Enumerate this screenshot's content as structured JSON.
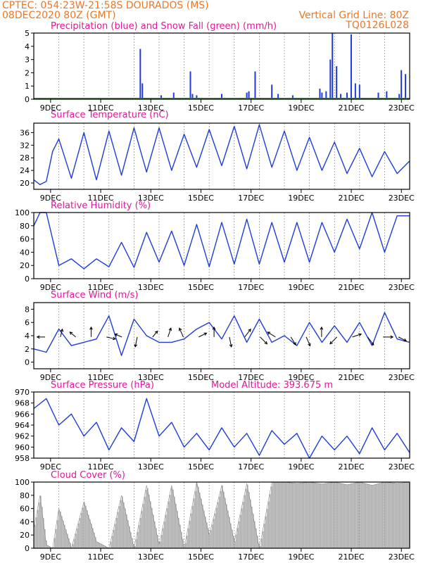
{
  "header": {
    "line1": "CPTEC:   054:23W-21:58S   DOURADOS (MS)",
    "line2": "08DEC2020 80Z (GMT)",
    "grid_note": "Vertical Grid Line: 80Z",
    "code": "TQ0126L028"
  },
  "colors": {
    "header": "#e8782a",
    "title": "#e2179b",
    "line": "#1f3bdc",
    "snow": "#1a9a1a",
    "cloud": "#a8a8a8"
  },
  "time_axis": {
    "start": "08DEC 08Z",
    "end": "23DEC 08Z",
    "ticks": [
      "9DEC",
      "11DEC",
      "13DEC",
      "15DEC",
      "17DEC",
      "19DEC",
      "21DEC",
      "23DEC"
    ],
    "tick_days_from_start": [
      0.67,
      2.67,
      4.67,
      6.67,
      8.67,
      10.67,
      12.67,
      14.67
    ]
  },
  "chart_data": [
    {
      "type": "bar",
      "title": "Precipitation (blue) and Snow Fall (green) (mm/h)",
      "ylim": [
        0,
        5
      ],
      "yticks": [
        "0",
        "1",
        "2",
        "3",
        "4",
        "5"
      ],
      "x": [
        "12DEC 14Z",
        "12DEC 16Z",
        "13DEC 10Z",
        "13DEC 22Z",
        "14DEC 14Z",
        "14DEC 16Z",
        "14DEC 20Z",
        "15DEC 20Z",
        "16DEC 20Z",
        "16DEC 22Z",
        "17DEC 04Z",
        "17DEC 20Z",
        "18DEC 02Z",
        "18DEC 16Z",
        "19DEC 18Z",
        "19DEC 20Z",
        "20DEC 00Z",
        "20DEC 04Z",
        "20DEC 06Z",
        "20DEC 10Z",
        "20DEC 14Z",
        "20DEC 20Z",
        "21DEC 00Z",
        "21DEC 04Z",
        "21DEC 08Z",
        "22DEC 02Z",
        "22DEC 10Z",
        "22DEC 22Z",
        "23DEC 00Z",
        "23DEC 04Z"
      ],
      "series": [
        {
          "name": "Precipitation",
          "values": [
            3.8,
            1.2,
            0.3,
            0.5,
            2.1,
            0.4,
            0.3,
            0.4,
            0.5,
            0.6,
            2.1,
            1.1,
            0.4,
            0.3,
            0.8,
            0.5,
            0.6,
            3.0,
            5.0,
            2.5,
            0.4,
            0.5,
            4.9,
            1.2,
            1.1,
            0.5,
            0.6,
            0.4,
            2.2,
            1.9
          ]
        },
        {
          "name": "Snow Fall",
          "values": [
            0,
            0,
            0,
            0,
            0,
            0,
            0,
            0,
            0,
            0,
            0,
            0,
            0,
            0,
            0,
            0,
            0,
            0,
            0,
            0,
            0,
            0,
            0,
            0,
            0,
            0,
            0,
            0,
            0,
            0
          ]
        }
      ]
    },
    {
      "type": "line",
      "title": "Surface Temperature (nC)",
      "ylim": [
        18,
        39
      ],
      "yticks": [
        "20",
        "24",
        "28",
        "32",
        "36"
      ],
      "x": [
        "08DEC 08Z",
        "08DEC 14Z",
        "08DEC 20Z",
        "09DEC 02Z",
        "09DEC 08Z",
        "09DEC 20Z",
        "10DEC 08Z",
        "10DEC 20Z",
        "11DEC 08Z",
        "11DEC 20Z",
        "12DEC 08Z",
        "12DEC 20Z",
        "13DEC 08Z",
        "13DEC 20Z",
        "14DEC 08Z",
        "14DEC 20Z",
        "15DEC 08Z",
        "15DEC 20Z",
        "16DEC 08Z",
        "16DEC 20Z",
        "17DEC 08Z",
        "17DEC 20Z",
        "18DEC 08Z",
        "18DEC 20Z",
        "19DEC 08Z",
        "19DEC 20Z",
        "20DEC 08Z",
        "20DEC 20Z",
        "21DEC 08Z",
        "21DEC 20Z",
        "22DEC 08Z",
        "22DEC 20Z",
        "23DEC 08Z"
      ],
      "values": [
        21,
        19.5,
        20.5,
        30,
        34,
        21.5,
        36,
        21,
        36.5,
        22.5,
        37.5,
        23.5,
        37.5,
        24,
        35.5,
        25,
        37,
        25.5,
        38,
        24.5,
        38.5,
        25,
        36.5,
        24,
        34.5,
        24,
        33,
        23,
        31,
        22,
        30,
        23,
        27
      ]
    },
    {
      "type": "line",
      "title": "Relative Humidity (%)",
      "ylim": [
        0,
        100
      ],
      "yticks": [
        "0",
        "20",
        "40",
        "60",
        "80",
        "100"
      ],
      "x": [
        "08DEC 08Z",
        "08DEC 14Z",
        "08DEC 20Z",
        "09DEC 08Z",
        "09DEC 20Z",
        "10DEC 08Z",
        "10DEC 20Z",
        "11DEC 08Z",
        "11DEC 20Z",
        "12DEC 08Z",
        "12DEC 20Z",
        "13DEC 08Z",
        "13DEC 20Z",
        "14DEC 08Z",
        "14DEC 20Z",
        "15DEC 08Z",
        "15DEC 20Z",
        "16DEC 08Z",
        "16DEC 20Z",
        "17DEC 08Z",
        "17DEC 20Z",
        "18DEC 08Z",
        "18DEC 20Z",
        "19DEC 08Z",
        "19DEC 20Z",
        "20DEC 08Z",
        "20DEC 20Z",
        "21DEC 08Z",
        "21DEC 20Z",
        "22DEC 08Z",
        "22DEC 20Z",
        "23DEC 08Z"
      ],
      "values": [
        80,
        100,
        100,
        20,
        30,
        15,
        30,
        18,
        55,
        17,
        70,
        25,
        72,
        20,
        82,
        18,
        85,
        22,
        90,
        22,
        85,
        25,
        85,
        25,
        85,
        40,
        90,
        45,
        100,
        40,
        95,
        95
      ]
    },
    {
      "type": "line",
      "title": "Surface Wind (m/s)",
      "ylim": [
        -1,
        9
      ],
      "yticks": [
        "0",
        "2",
        "4",
        "6",
        "8"
      ],
      "x": [
        "08DEC 08Z",
        "08DEC 20Z",
        "09DEC 08Z",
        "09DEC 20Z",
        "10DEC 08Z",
        "10DEC 20Z",
        "11DEC 08Z",
        "11DEC 20Z",
        "12DEC 08Z",
        "12DEC 20Z",
        "13DEC 08Z",
        "13DEC 20Z",
        "14DEC 08Z",
        "14DEC 20Z",
        "15DEC 08Z",
        "15DEC 20Z",
        "16DEC 08Z",
        "16DEC 20Z",
        "17DEC 08Z",
        "17DEC 20Z",
        "18DEC 08Z",
        "18DEC 20Z",
        "19DEC 08Z",
        "19DEC 20Z",
        "20DEC 08Z",
        "20DEC 20Z",
        "21DEC 08Z",
        "21DEC 20Z",
        "22DEC 08Z",
        "22DEC 20Z",
        "23DEC 08Z"
      ],
      "values": [
        2,
        1.5,
        5,
        2.5,
        3,
        3.5,
        7,
        1,
        6.5,
        4,
        3,
        3,
        3.5,
        5,
        6,
        3.5,
        7,
        3,
        6.5,
        3,
        4,
        2.5,
        6,
        3,
        5.5,
        3,
        6,
        2.5,
        7.5,
        3.5,
        3
      ],
      "wind_vectors": [
        {
          "u": -0.8,
          "v": 0
        },
        {
          "u": 0.2,
          "v": 0.8
        },
        {
          "u": -0.6,
          "v": 0.5
        },
        {
          "u": 0,
          "v": 1
        },
        {
          "u": 0.9,
          "v": -0.2
        },
        {
          "u": -0.7,
          "v": 0.3
        },
        {
          "u": -0.2,
          "v": -1
        },
        {
          "u": 0.5,
          "v": 0.6
        },
        {
          "u": 0.3,
          "v": 0.9
        },
        {
          "u": -0.4,
          "v": 0.9
        },
        {
          "u": 0.8,
          "v": 0.4
        },
        {
          "u": 0,
          "v": 1
        },
        {
          "u": 0.2,
          "v": -1
        },
        {
          "u": 0.6,
          "v": 0.8
        },
        {
          "u": 0.7,
          "v": -0.7
        },
        {
          "u": -0.8,
          "v": 0.5
        },
        {
          "u": 0.5,
          "v": -0.8
        },
        {
          "u": 0.4,
          "v": -0.9
        },
        {
          "u": 0,
          "v": 1
        },
        {
          "u": -0.7,
          "v": -0.7
        },
        {
          "u": 0.9,
          "v": 0.3
        },
        {
          "u": 0.6,
          "v": -0.8
        },
        {
          "u": 1,
          "v": 0
        },
        {
          "u": 0.8,
          "v": -0.4
        }
      ]
    },
    {
      "type": "line",
      "title": "Surface Pressure (hPa)",
      "annotation": "Model Altitude: 393.675 m",
      "ylim": [
        958,
        970
      ],
      "yticks": [
        "958",
        "960",
        "962",
        "964",
        "966",
        "968",
        "970"
      ],
      "x": [
        "08DEC 08Z",
        "08DEC 20Z",
        "09DEC 08Z",
        "09DEC 20Z",
        "10DEC 08Z",
        "10DEC 20Z",
        "11DEC 08Z",
        "11DEC 20Z",
        "12DEC 08Z",
        "12DEC 20Z",
        "13DEC 08Z",
        "13DEC 20Z",
        "14DEC 08Z",
        "14DEC 20Z",
        "15DEC 08Z",
        "15DEC 20Z",
        "16DEC 08Z",
        "16DEC 20Z",
        "17DEC 08Z",
        "17DEC 20Z",
        "18DEC 08Z",
        "18DEC 20Z",
        "19DEC 08Z",
        "19DEC 20Z",
        "20DEC 08Z",
        "20DEC 20Z",
        "21DEC 08Z",
        "21DEC 20Z",
        "22DEC 08Z",
        "22DEC 20Z",
        "23DEC 08Z"
      ],
      "values": [
        967,
        968.8,
        964,
        966,
        962,
        964.5,
        959.5,
        963.5,
        961,
        968.8,
        962,
        964.5,
        960,
        962.5,
        959.5,
        963.5,
        960,
        962.5,
        958.5,
        963,
        960.5,
        962.5,
        958,
        962,
        959.5,
        962,
        958.8,
        963.5,
        959.5,
        962.5,
        959
      ]
    },
    {
      "type": "area",
      "title": "Cloud Cover (%)",
      "ylim": [
        0,
        100
      ],
      "yticks": [
        "0",
        "20",
        "40",
        "60",
        "80",
        "100"
      ],
      "x": [
        "08DEC 08Z",
        "08DEC 14Z",
        "08DEC 20Z",
        "09DEC 02Z",
        "09DEC 08Z",
        "09DEC 20Z",
        "10DEC 08Z",
        "10DEC 20Z",
        "11DEC 08Z",
        "11DEC 20Z",
        "12DEC 08Z",
        "12DEC 20Z",
        "13DEC 08Z",
        "13DEC 20Z",
        "14DEC 08Z",
        "14DEC 20Z",
        "15DEC 08Z",
        "15DEC 20Z",
        "16DEC 08Z",
        "16DEC 20Z",
        "17DEC 08Z",
        "17DEC 20Z",
        "18DEC 08Z",
        "18DEC 20Z",
        "19DEC 08Z",
        "19DEC 20Z",
        "20DEC 08Z",
        "20DEC 20Z",
        "21DEC 08Z",
        "21DEC 20Z",
        "22DEC 08Z",
        "22DEC 20Z",
        "23DEC 08Z"
      ],
      "values": [
        30,
        80,
        5,
        0,
        60,
        0,
        70,
        10,
        0,
        80,
        0,
        95,
        5,
        95,
        0,
        100,
        20,
        95,
        10,
        98,
        0,
        100,
        100,
        98,
        100,
        97,
        100,
        96,
        100,
        95,
        100,
        98,
        100
      ]
    }
  ]
}
